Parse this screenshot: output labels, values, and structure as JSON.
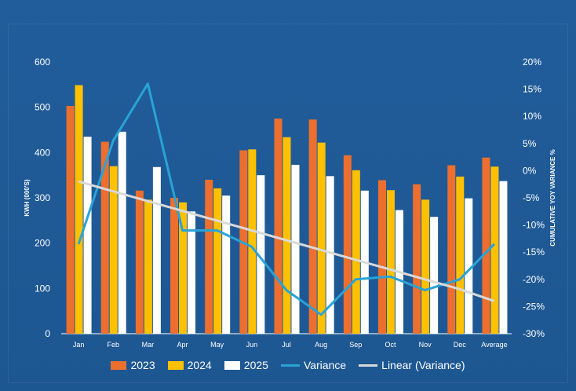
{
  "chart_data": {
    "type": "bar",
    "title": "",
    "categories": [
      "Jan",
      "Feb",
      "Mar",
      "Apr",
      "May",
      "Jun",
      "Jul",
      "Aug",
      "Sep",
      "Oct",
      "Nov",
      "Dec",
      "Average"
    ],
    "series": [
      {
        "name": "2023",
        "kind": "bar",
        "color": "#ec6f2f",
        "values": [
          503,
          424,
          316,
          300,
          340,
          405,
          475,
          473,
          394,
          339,
          330,
          372,
          389
        ]
      },
      {
        "name": "2024",
        "kind": "bar",
        "color": "#ffc000",
        "values": [
          549,
          370,
          296,
          290,
          321,
          407,
          434,
          422,
          361,
          317,
          296,
          347,
          369
        ]
      },
      {
        "name": "2025",
        "kind": "bar",
        "color": "#ffffff",
        "values": [
          435,
          446,
          368,
          270,
          305,
          350,
          373,
          348,
          316,
          273,
          258,
          299,
          337
        ]
      },
      {
        "name": "Variance",
        "kind": "line",
        "axis": "right",
        "color": "#29a3d6",
        "values": [
          -13.5,
          5.5,
          16,
          -11,
          -11,
          -14,
          -22,
          -26.5,
          -20,
          -19.5,
          -22,
          -20,
          -13.5
        ]
      },
      {
        "name": "Linear (Variance)",
        "kind": "trendline",
        "axis": "right",
        "color": "#d9d9d9",
        "values": [
          -2,
          -3.8,
          -5.6,
          -7.4,
          -9.2,
          -11,
          -12.8,
          -14.6,
          -16.4,
          -18.2,
          -20,
          -21.8,
          -24
        ]
      }
    ],
    "ylabel": "KWH (000'S)",
    "ylim": [
      0,
      600
    ],
    "yticks": [
      "0",
      "100",
      "200",
      "300",
      "400",
      "500",
      "600"
    ],
    "y2label": "CUMULATIVE YOY VARIANCE %",
    "y2lim": [
      -30,
      20
    ],
    "y2ticks": [
      "-30%",
      "-25%",
      "-20%",
      "-15%",
      "-10%",
      "-5%",
      "0%",
      "5%",
      "10%",
      "15%",
      "20%"
    ],
    "legend_position": "bottom",
    "grid": false
  }
}
